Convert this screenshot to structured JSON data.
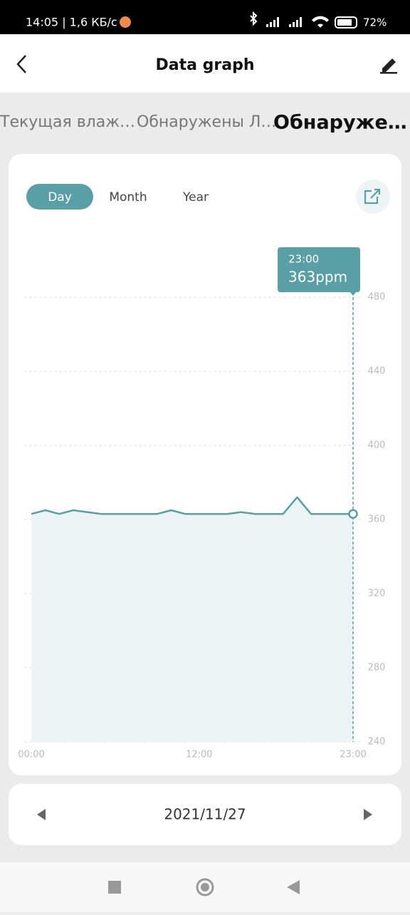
{
  "status_bar": {
    "time_speed": "14:05 | 1,6 КБ/с",
    "battery": "72%"
  },
  "header": {
    "title": "Data graph"
  },
  "tabs": [
    "Текущая влаж…",
    "Обнаружены Л…",
    "Обнаруже…"
  ],
  "period": {
    "options": [
      "Day",
      "Month",
      "Year"
    ],
    "selected": 0
  },
  "chart_data": {
    "type": "area",
    "color": "#5a9ea6",
    "fill": "#ebf3f4",
    "x": [
      0,
      1,
      2,
      3,
      4,
      5,
      6,
      7,
      8,
      9,
      10,
      11,
      12,
      13,
      14,
      15,
      16,
      17,
      18,
      19,
      20,
      21,
      22,
      23
    ],
    "values": [
      363,
      365,
      363,
      365,
      364,
      363,
      363,
      363,
      363,
      363,
      365,
      363,
      363,
      363,
      363,
      364,
      363,
      363,
      363,
      372,
      363,
      363,
      363,
      363
    ],
    "xlim": [
      0,
      23
    ],
    "xticks": [
      {
        "value": 0,
        "label": "00:00"
      },
      {
        "value": 12,
        "label": "12:00"
      },
      {
        "value": 23,
        "label": "23:00"
      }
    ],
    "ylim": [
      240,
      480
    ],
    "yticks": [
      240,
      280,
      320,
      360,
      400,
      440,
      480
    ],
    "grid": true,
    "tooltip": {
      "time": "23:00",
      "value": 363,
      "value_label": "363ppm"
    }
  },
  "date_nav": {
    "date": "2021/11/27"
  }
}
